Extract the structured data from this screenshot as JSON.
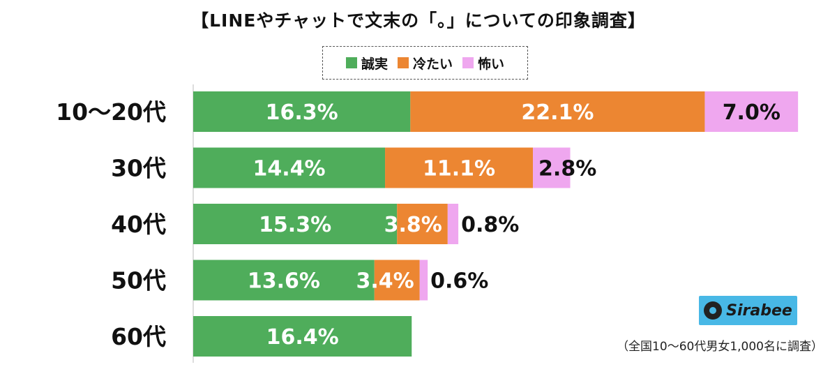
{
  "chart_data": {
    "type": "bar",
    "orientation": "horizontal",
    "stacked": true,
    "title": "【LINEやチャットで文末の「。」についての印象調査】",
    "categories": [
      "10〜20代",
      "30代",
      "40代",
      "50代",
      "60代"
    ],
    "series": [
      {
        "name": "誠実",
        "color": "#4fad5b",
        "values": [
          16.3,
          14.4,
          15.3,
          13.6,
          16.4
        ],
        "labels": [
          "16.3%",
          "14.4%",
          "15.3%",
          "13.6%",
          "16.4%"
        ]
      },
      {
        "name": "冷たい",
        "color": "#ec8632",
        "values": [
          22.1,
          11.1,
          3.8,
          3.4,
          0
        ],
        "labels": [
          "22.1%",
          "11.1%",
          "3.8%",
          "3.4%",
          ""
        ]
      },
      {
        "name": "怖い",
        "color": "#efa7ef",
        "values": [
          7.0,
          2.8,
          0.8,
          0.6,
          0
        ],
        "labels": [
          "7.0%",
          "2.8%",
          "0.8%",
          "0.6%",
          ""
        ]
      }
    ],
    "legend_position": "top",
    "grid": false,
    "note": "（全国10〜60代男女1,000名に調査）"
  },
  "logo_text": "Sirabee"
}
